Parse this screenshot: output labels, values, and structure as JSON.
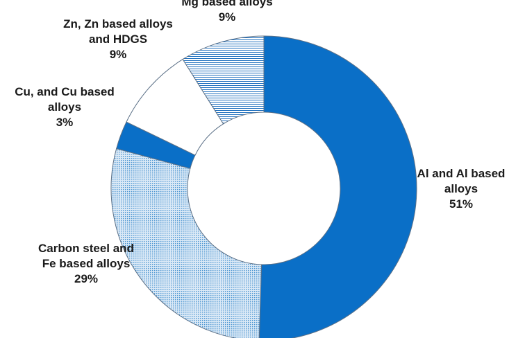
{
  "chart_data": {
    "type": "pie",
    "donut": true,
    "title": "",
    "categories": [
      "Al and Al based alloys",
      "Carbon steel and Fe based alloys",
      "Cu, and Cu based alloys",
      "Zn, Zn based alloys and HDGS",
      "Mg based alloys"
    ],
    "values": [
      51,
      29,
      3,
      9,
      9
    ],
    "labels": [
      {
        "lines": [
          "Al and Al based",
          "alloys"
        ],
        "percent": "51%"
      },
      {
        "lines": [
          "Carbon steel and",
          "Fe based alloys"
        ],
        "percent": "29%"
      },
      {
        "lines": [
          "Cu, and Cu based",
          "alloys"
        ],
        "percent": "3%"
      },
      {
        "lines": [
          "Zn, Zn based alloys",
          "and HDGS"
        ],
        "percent": "9%"
      },
      {
        "lines": [
          "Mg based alloys"
        ],
        "percent": "9%"
      }
    ],
    "fills": [
      "solid",
      "dots",
      "solid",
      "blank",
      "hlines"
    ],
    "colors": [
      "#0a6fc7",
      "#4b95d1",
      "#0a6fc7",
      "#ffffff",
      "#1e6fbe"
    ],
    "legend": "none",
    "start_angle": "12 o'clock, clockwise"
  }
}
